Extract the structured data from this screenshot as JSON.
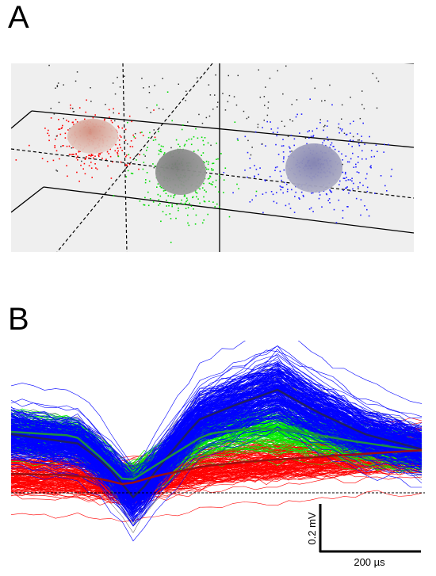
{
  "panels": {
    "a": {
      "label": "A"
    },
    "b": {
      "label": "B"
    }
  },
  "clusters": [
    {
      "name": "red",
      "color": "#ff0000",
      "ellipse_color": "#c08070"
    },
    {
      "name": "green",
      "color": "#00dd00",
      "ellipse_color": "#808080"
    },
    {
      "name": "blue",
      "color": "#2020ff",
      "ellipse_color": "#9090b0"
    }
  ],
  "noise_color": "#303030",
  "waveforms": {
    "colors": {
      "blue": "#0000ff",
      "green": "#00ee00",
      "red": "#ff0000",
      "noise": "#404040"
    },
    "mean_colors": {
      "blue": "#202060",
      "green": "#209040",
      "red": "#9a1010"
    }
  },
  "scale_bar": {
    "vertical_label": "0.2 mV",
    "horizontal_label": "200 µs"
  }
}
